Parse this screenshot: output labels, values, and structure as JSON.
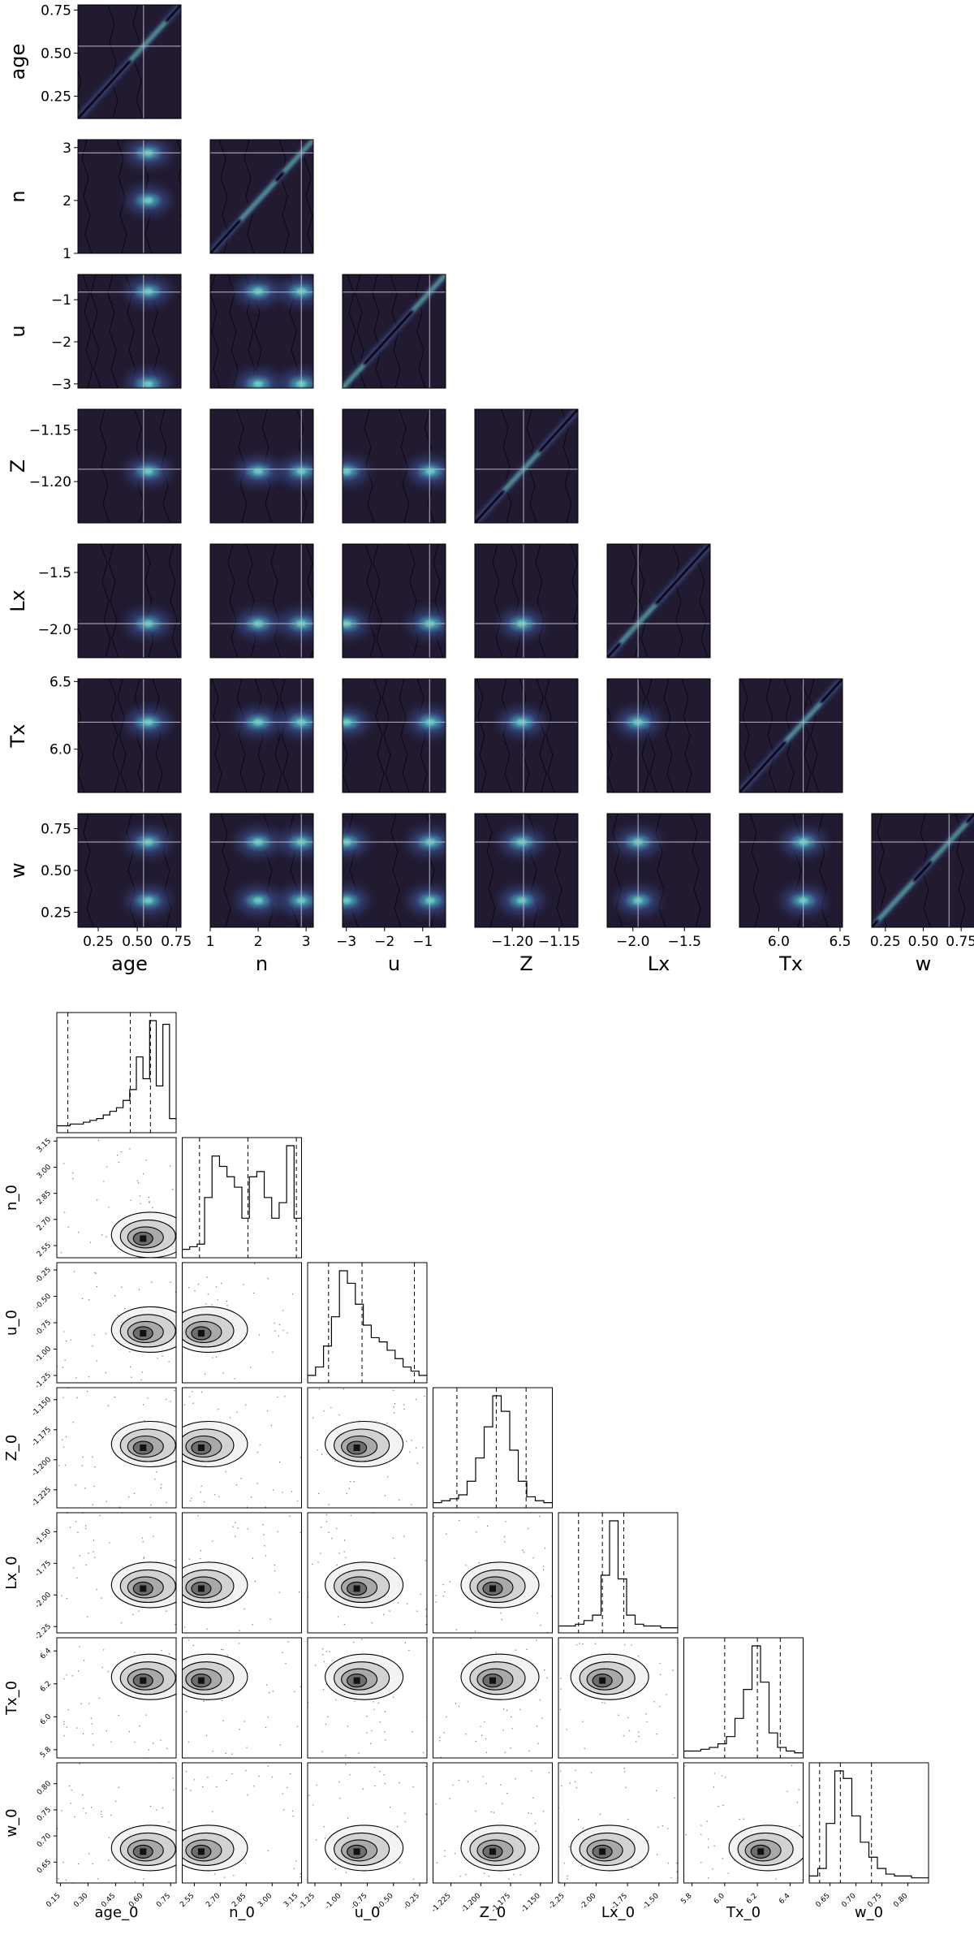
{
  "chart_data": [
    {
      "type": "heatmap",
      "kind": "pairwise-density-grid",
      "params": [
        "age",
        "n",
        "u",
        "Z",
        "Lx",
        "Tx",
        "w"
      ],
      "ranges": {
        "age": [
          0.12,
          0.78
        ],
        "n": [
          1.0,
          3.15
        ],
        "u": [
          -3.1,
          -0.4
        ],
        "Z": [
          -1.24,
          -1.13
        ],
        "Lx": [
          -2.25,
          -1.25
        ],
        "Tx": [
          5.68,
          6.52
        ],
        "w": [
          0.16,
          0.84
        ]
      },
      "truth": {
        "age": 0.54,
        "n": 2.9,
        "u": -0.82,
        "Z": -1.188,
        "Lx": -1.95,
        "Tx": 6.2,
        "w": 0.67
      },
      "ticks": {
        "age": {
          "values": [
            0.25,
            0.5,
            0.75
          ],
          "labels": [
            "0.25",
            "0.50",
            "0.75"
          ]
        },
        "n": {
          "values": [
            1,
            2,
            3
          ],
          "labels": [
            "1",
            "2",
            "3"
          ]
        },
        "u": {
          "values": [
            -3,
            -2,
            -1
          ],
          "labels": [
            "−3",
            "−2",
            "−1"
          ]
        },
        "Z": {
          "values": [
            -1.2,
            -1.15
          ],
          "labels": [
            "−1.20",
            "−1.15"
          ]
        },
        "Lx": {
          "values": [
            -2.0,
            -1.5
          ],
          "labels": [
            "−2.0",
            "−1.5"
          ]
        },
        "Tx": {
          "values": [
            6.0,
            6.5
          ],
          "labels": [
            "6.0",
            "6.5"
          ]
        },
        "w": {
          "values": [
            0.25,
            0.5,
            0.75
          ],
          "labels": [
            "0.25",
            "0.50",
            "0.75"
          ]
        }
      },
      "modes": {
        "age": [
          0.57
        ],
        "n": [
          2.0,
          2.9
        ],
        "u": [
          -3.0,
          -0.8
        ],
        "Z": [
          -1.19
        ],
        "Lx": [
          -1.95
        ],
        "Tx": [
          6.2
        ],
        "w": [
          0.32,
          0.67
        ]
      },
      "colormap": [
        "#211a30",
        "#3b4e8c",
        "#3f8fa6",
        "#6fd3c2"
      ]
    },
    {
      "type": "corner",
      "params": [
        "age_0",
        "n_0",
        "u_0",
        "Z_0",
        "Lx_0",
        "Tx_0",
        "w_0"
      ],
      "ranges": {
        "age_0": [
          0.13,
          0.78
        ],
        "n_0": [
          2.48,
          3.17
        ],
        "u_0": [
          -1.32,
          -0.18
        ],
        "Z_0": [
          -1.24,
          -1.14
        ],
        "Lx_0": [
          -2.3,
          -1.35
        ],
        "Tx_0": [
          5.75,
          6.48
        ],
        "w_0": [
          0.61,
          0.84
        ]
      },
      "ticks": {
        "age_0": {
          "values": [
            0.15,
            0.3,
            0.45,
            0.6,
            0.75
          ],
          "labels": [
            "0.15",
            "0.30",
            "0.45",
            "0.60",
            "0.75"
          ]
        },
        "n_0": {
          "values": [
            2.55,
            2.7,
            2.85,
            3.0,
            3.15
          ],
          "labels": [
            "2.55",
            "2.70",
            "2.85",
            "3.00",
            "3.15"
          ]
        },
        "u_0": {
          "values": [
            -1.25,
            -1.0,
            -0.75,
            -0.5,
            -0.25
          ],
          "labels": [
            "-1.25",
            "-1.00",
            "-0.75",
            "-0.50",
            "-0.25"
          ]
        },
        "Z_0": {
          "values": [
            -1.225,
            -1.2,
            -1.175,
            -1.15
          ],
          "labels": [
            "-1.225",
            "-1.200",
            "-1.175",
            "-1.150"
          ]
        },
        "Lx_0": {
          "values": [
            -2.25,
            -2.0,
            -1.75,
            -1.5
          ],
          "labels": [
            "-2.25",
            "-2.00",
            "-1.75",
            "-1.50"
          ]
        },
        "Tx_0": {
          "values": [
            5.8,
            6.0,
            6.2,
            6.4
          ],
          "labels": [
            "5.8",
            "6.0",
            "6.2",
            "6.4"
          ]
        },
        "w_0": {
          "values": [
            0.65,
            0.7,
            0.75,
            0.8
          ],
          "labels": [
            "0.65",
            "0.70",
            "0.75",
            "0.80"
          ]
        }
      },
      "histograms": {
        "age_0": [
          2,
          2,
          3,
          3,
          4,
          5,
          6,
          8,
          10,
          12,
          16,
          22,
          40,
          28,
          60,
          24,
          58,
          6
        ],
        "n_0": [
          2,
          3,
          4,
          22,
          38,
          34,
          30,
          26,
          14,
          30,
          32,
          22,
          14,
          20,
          42,
          14
        ],
        "u_0": [
          2,
          6,
          16,
          30,
          52,
          46,
          36,
          26,
          20,
          18,
          14,
          10,
          6,
          4,
          2
        ],
        "Z_0": [
          1,
          2,
          3,
          5,
          12,
          24,
          40,
          56,
          48,
          28,
          12,
          4,
          2,
          1
        ],
        "Lx_0": [
          2,
          2,
          3,
          5,
          8,
          30,
          60,
          28,
          8,
          3,
          2,
          2,
          1,
          1
        ],
        "Tx_0": [
          2,
          2,
          3,
          4,
          6,
          10,
          20,
          36,
          60,
          40,
          12,
          4,
          2,
          1
        ],
        "w_0": [
          2,
          6,
          30,
          58,
          54,
          34,
          20,
          12,
          6,
          3,
          2,
          2,
          1,
          1
        ]
      },
      "quantiles": {
        "age_0": [
          0.19,
          0.53,
          0.64
        ],
        "n_0": [
          2.58,
          2.86,
          3.14
        ],
        "u_0": [
          -1.12,
          -0.8,
          -0.3
        ],
        "Z_0": [
          -1.22,
          -1.187,
          -1.162
        ],
        "Lx_0": [
          -2.14,
          -1.95,
          -1.78
        ],
        "Tx_0": [
          6.0,
          6.2,
          6.34
        ],
        "w_0": [
          0.63,
          0.67,
          0.73
        ]
      },
      "modes": {
        "age_0": [
          0.6
        ],
        "n_0": [
          2.59
        ],
        "u_0": [
          -0.85
        ],
        "Z_0": [
          -1.19
        ],
        "Lx_0": [
          -1.95
        ],
        "Tx_0": [
          6.22
        ],
        "w_0": [
          0.67
        ]
      }
    }
  ]
}
